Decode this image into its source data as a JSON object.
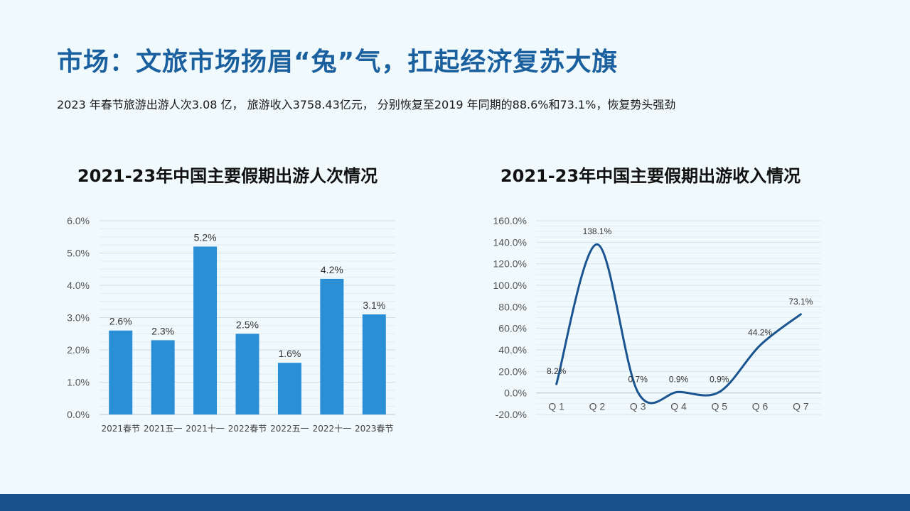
{
  "page": {
    "title": "市场：文旅市场扬眉“兔”气，扛起经济复苏大旗",
    "subtitle": "2023 年春节旅游出游人次3.08 亿， 旅游收入3758.43亿元， 分别恢复至2019 年同期的88.6%和73.1%，恢复势头强劲"
  },
  "colors": {
    "title": "#1a5f9e",
    "bar": "#2b8fd6",
    "line": "#1a5591",
    "footer": "#17528a",
    "background": "#f0f9fc"
  },
  "chart_data": [
    {
      "type": "bar",
      "title": "2021-23年中国主要假期出游人次情况",
      "categories": [
        "2021春节",
        "2021五一",
        "2021十一",
        "2022春节",
        "2022五一",
        "2022十一",
        "2023春节"
      ],
      "values": [
        2.6,
        2.3,
        5.2,
        2.5,
        1.6,
        4.2,
        3.1
      ],
      "data_labels": [
        "2.6%",
        "2.3%",
        "5.2%",
        "2.5%",
        "1.6%",
        "4.2%",
        "3.1%"
      ],
      "ylim": [
        0,
        6
      ],
      "yticks": [
        "0.0%",
        "1.0%",
        "2.0%",
        "3.0%",
        "4.0%",
        "5.0%",
        "6.0%"
      ],
      "ytick_values": [
        0,
        1,
        2,
        3,
        4,
        5,
        6
      ],
      "xlabel": "",
      "ylabel": "",
      "grid": true
    },
    {
      "type": "line",
      "title": "2021-23年中国主要假期出游收入情况",
      "categories": [
        "Q 1",
        "Q 2",
        "Q 3",
        "Q 4",
        "Q 5",
        "Q 6",
        "Q 7"
      ],
      "values": [
        8.2,
        138.1,
        0.7,
        0.9,
        0.9,
        44.2,
        73.1
      ],
      "data_labels": [
        "8.2%",
        "138.1%",
        "0.7%",
        "0.9%",
        "0.9%",
        "44.2%",
        "73.1%"
      ],
      "ylim": [
        -20,
        160
      ],
      "yticks": [
        "-20.0%",
        "0.0%",
        "20.0%",
        "40.0%",
        "60.0%",
        "80.0%",
        "100.0%",
        "120.0%",
        "140.0%",
        "160.0%"
      ],
      "ytick_values": [
        -20,
        0,
        20,
        40,
        60,
        80,
        100,
        120,
        140,
        160
      ],
      "xlabel": "",
      "ylabel": "",
      "grid": true,
      "smooth": true
    }
  ]
}
